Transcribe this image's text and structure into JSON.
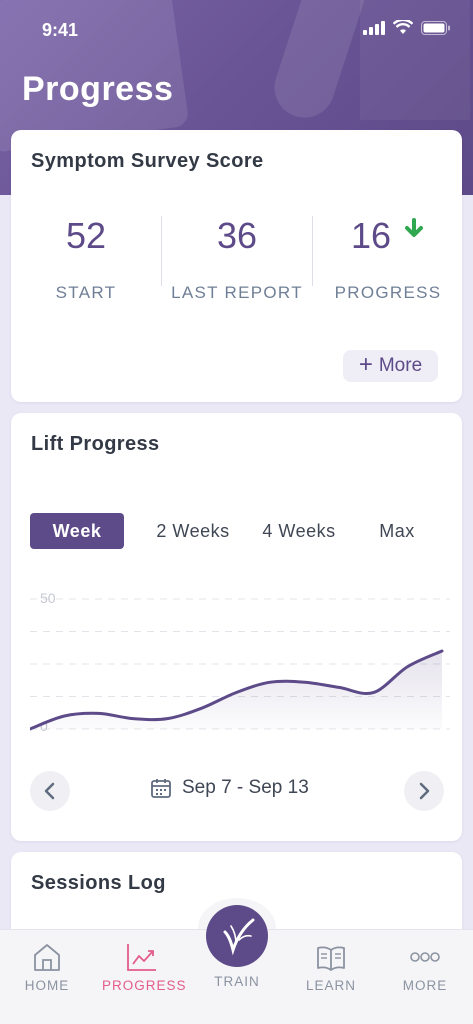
{
  "status_bar": {
    "time": "9:41"
  },
  "header": {
    "title": "Progress"
  },
  "survey": {
    "title": "Symptom Survey Score",
    "stats": [
      {
        "value": "52",
        "label": "START"
      },
      {
        "value": "36",
        "label": "LAST REPORT"
      },
      {
        "value": "16",
        "label": "PROGRESS"
      }
    ],
    "more_label": "More"
  },
  "lift": {
    "title": "Lift Progress",
    "tabs": [
      "Week",
      "2 Weeks",
      "4 Weeks",
      "Max"
    ],
    "active_tab": "Week",
    "chart": {
      "y_top_label": "50",
      "y_bottom_label": "0"
    },
    "date_range": "Sep 7 - Sep 13"
  },
  "chart_data": {
    "type": "area",
    "ylim": [
      0,
      50
    ],
    "yticks": [
      "0",
      "50"
    ],
    "x": [
      0,
      1,
      2,
      3,
      4,
      5,
      6,
      7,
      8,
      9,
      10,
      11,
      12
    ],
    "values": [
      0,
      5,
      6,
      4,
      4,
      8,
      14,
      18,
      18,
      16,
      14,
      24,
      30
    ]
  },
  "sessions": {
    "title": "Sessions Log"
  },
  "tabbar": {
    "items": [
      {
        "label": "HOME"
      },
      {
        "label": "PROGRESS"
      },
      {
        "label": "TRAIN"
      },
      {
        "label": "LEARN"
      },
      {
        "label": "MORE"
      }
    ]
  },
  "colors": {
    "brand": "#5d4a88",
    "active_tab": "#e35c8a",
    "trend_down": "#2fa84f",
    "label": "#6f7f96"
  }
}
